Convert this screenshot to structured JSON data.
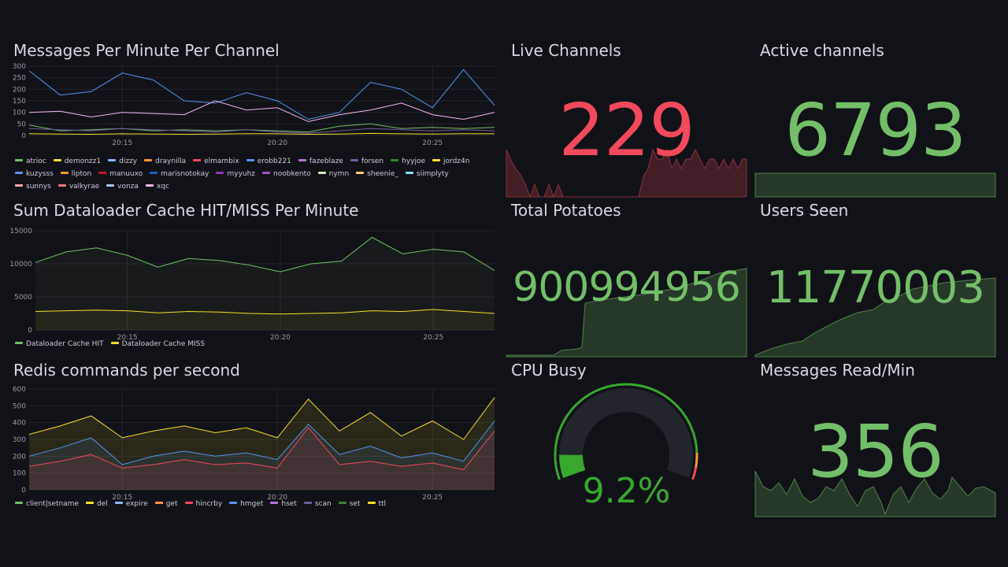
{
  "colors": {
    "background": "#111217",
    "grid": "#24262d",
    "red_stat": "#f2495c",
    "green_stat": "#73bf69"
  },
  "panels": {
    "messages_per_minute": {
      "title": "Messages Per Minute Per Channel",
      "y_ticks": [
        "300",
        "250",
        "200",
        "150",
        "100",
        "50",
        "0"
      ],
      "x_ticks": [
        "20:15",
        "20:20",
        "20:25"
      ],
      "legend": [
        {
          "name": "atrioc",
          "color": "#73bf69"
        },
        {
          "name": "demonzz1",
          "color": "#fade2a"
        },
        {
          "name": "dizzy",
          "color": "#8ab8ff"
        },
        {
          "name": "draynilla",
          "color": "#ff9830"
        },
        {
          "name": "elmambix",
          "color": "#f2495c"
        },
        {
          "name": "erobb221",
          "color": "#5794f2"
        },
        {
          "name": "fazeblaze",
          "color": "#b877d9"
        },
        {
          "name": "forsen",
          "color": "#705da0"
        },
        {
          "name": "hyyjoe",
          "color": "#37872d"
        },
        {
          "name": "jordz4n",
          "color": "#fade2a"
        },
        {
          "name": "kuzysss",
          "color": "#5794f2"
        },
        {
          "name": "lipton",
          "color": "#ff9830"
        },
        {
          "name": "manuuxo",
          "color": "#c4162a"
        },
        {
          "name": "marisnotokay",
          "color": "#1f60c4"
        },
        {
          "name": "myyuhz",
          "color": "#8f3bb8"
        },
        {
          "name": "noobkento",
          "color": "#a352cc"
        },
        {
          "name": "nymn",
          "color": "#c8f2c2"
        },
        {
          "name": "sheenie_",
          "color": "#ffcb7d"
        },
        {
          "name": "siimplyty",
          "color": "#8ae0ff"
        },
        {
          "name": "sunnys",
          "color": "#ffa6b0"
        },
        {
          "name": "valkyrae",
          "color": "#ff7383"
        },
        {
          "name": "vonza",
          "color": "#a3c8ff"
        },
        {
          "name": "xqc",
          "color": "#f4b6f7"
        }
      ]
    },
    "dataloader": {
      "title": "Sum Dataloader Cache HIT/MISS Per Minute",
      "y_ticks": [
        "15000",
        "10000",
        "5000",
        "0"
      ],
      "x_ticks": [
        "20:15",
        "20:20",
        "20:25"
      ],
      "legend": [
        {
          "name": "Dataloader Cache HIT",
          "color": "#73bf69"
        },
        {
          "name": "Dataloader Cache MISS",
          "color": "#fade2a"
        }
      ]
    },
    "redis": {
      "title": "Redis commands per second",
      "y_ticks": [
        "600",
        "500",
        "400",
        "300",
        "200",
        "100",
        "0"
      ],
      "x_ticks": [
        "20:15",
        "20:20",
        "20:25"
      ],
      "legend": [
        {
          "name": "client|setname",
          "color": "#73bf69"
        },
        {
          "name": "del",
          "color": "#fade2a"
        },
        {
          "name": "expire",
          "color": "#8ab8ff"
        },
        {
          "name": "get",
          "color": "#ff9830"
        },
        {
          "name": "hincrby",
          "color": "#f2495c"
        },
        {
          "name": "hmget",
          "color": "#5794f2"
        },
        {
          "name": "hset",
          "color": "#b877d9"
        },
        {
          "name": "scan",
          "color": "#705da0"
        },
        {
          "name": "set",
          "color": "#37872d"
        },
        {
          "name": "ttl",
          "color": "#fade2a"
        }
      ]
    },
    "live_channels": {
      "title": "Live Channels",
      "value": "229",
      "color": "#f2495c"
    },
    "active_channels": {
      "title": "Active channels",
      "value": "6793",
      "color": "#73bf69"
    },
    "total_potatoes": {
      "title": "Total Potatoes",
      "value": "900994956",
      "color": "#73bf69"
    },
    "users_seen": {
      "title": "Users Seen",
      "value": "11770003",
      "color": "#73bf69"
    },
    "cpu_busy": {
      "title": "CPU Busy",
      "value": "9.2%",
      "percent": 9.2,
      "color": "#37a82d"
    },
    "messages_read": {
      "title": "Messages Read/Min",
      "value": "356",
      "color": "#73bf69"
    }
  },
  "chart_data": [
    {
      "type": "line",
      "title": "Messages Per Minute Per Channel",
      "ylim": [
        0,
        300
      ],
      "x": [
        "20:12",
        "20:13",
        "20:14",
        "20:15",
        "20:16",
        "20:17",
        "20:18",
        "20:19",
        "20:20",
        "20:21",
        "20:22",
        "20:23",
        "20:24",
        "20:25",
        "20:26",
        "20:27"
      ],
      "series": [
        {
          "name": "erobb221",
          "values": [
            280,
            175,
            190,
            270,
            240,
            150,
            140,
            185,
            150,
            70,
            100,
            230,
            200,
            120,
            285,
            130
          ]
        },
        {
          "name": "xqc",
          "values": [
            100,
            105,
            80,
            100,
            95,
            90,
            150,
            110,
            120,
            60,
            90,
            110,
            140,
            90,
            70,
            100
          ]
        },
        {
          "name": "atrioc",
          "values": [
            45,
            20,
            25,
            30,
            20,
            25,
            20,
            25,
            20,
            15,
            40,
            50,
            30,
            35,
            30,
            35
          ]
        },
        {
          "name": "forsen",
          "values": [
            30,
            25,
            20,
            30,
            25,
            20,
            15,
            25,
            15,
            10,
            20,
            30,
            25,
            20,
            25,
            20
          ]
        },
        {
          "name": "demonzz1",
          "values": [
            8,
            6,
            5,
            7,
            6,
            5,
            6,
            8,
            7,
            5,
            6,
            9,
            7,
            6,
            8,
            7
          ]
        }
      ]
    },
    {
      "type": "area",
      "title": "Sum Dataloader Cache HIT/MISS Per Minute",
      "ylim": [
        0,
        15000
      ],
      "x": [
        "20:12",
        "20:13",
        "20:14",
        "20:15",
        "20:16",
        "20:17",
        "20:18",
        "20:19",
        "20:20",
        "20:21",
        "20:22",
        "20:23",
        "20:24",
        "20:25",
        "20:26",
        "20:27"
      ],
      "series": [
        {
          "name": "Dataloader Cache HIT",
          "values": [
            10200,
            11800,
            12400,
            11300,
            9500,
            10800,
            10500,
            9800,
            8800,
            10000,
            10400,
            14000,
            11500,
            12200,
            11800,
            9000
          ]
        },
        {
          "name": "Dataloader Cache MISS",
          "values": [
            2800,
            2900,
            3000,
            2900,
            2600,
            2800,
            2700,
            2500,
            2400,
            2500,
            2600,
            2900,
            2800,
            3100,
            2800,
            2500
          ]
        }
      ]
    },
    {
      "type": "area",
      "title": "Redis commands per second",
      "ylim": [
        0,
        600
      ],
      "x": [
        "20:12",
        "20:13",
        "20:14",
        "20:15",
        "20:16",
        "20:17",
        "20:18",
        "20:19",
        "20:20",
        "20:21",
        "20:22",
        "20:23",
        "20:24",
        "20:25",
        "20:26",
        "20:27"
      ],
      "series": [
        {
          "name": "ttl",
          "values": [
            330,
            380,
            440,
            310,
            350,
            380,
            340,
            370,
            310,
            540,
            350,
            460,
            320,
            410,
            300,
            550
          ]
        },
        {
          "name": "hmget",
          "values": [
            200,
            250,
            310,
            150,
            200,
            230,
            200,
            220,
            180,
            390,
            210,
            260,
            190,
            220,
            170,
            410
          ]
        },
        {
          "name": "hincrby",
          "values": [
            140,
            170,
            210,
            130,
            150,
            180,
            150,
            160,
            130,
            370,
            150,
            170,
            140,
            160,
            120,
            350
          ]
        }
      ]
    }
  ]
}
